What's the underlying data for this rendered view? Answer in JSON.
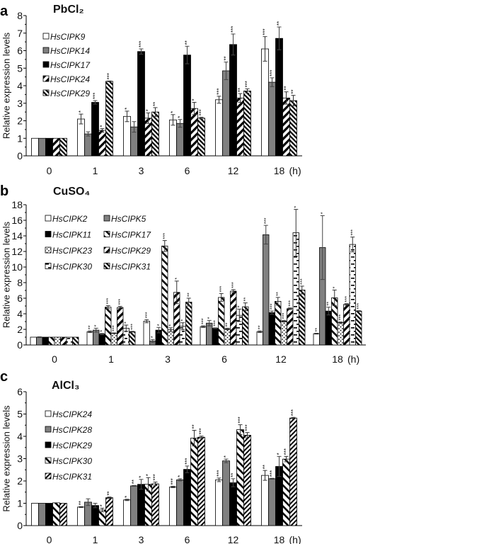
{
  "chart_data": [
    {
      "type": "bar",
      "panel_label": "a",
      "title": "PbCl₂",
      "ylabel": "Relative expression levels",
      "ylim": [
        0,
        8
      ],
      "yticks": [
        "0",
        "1",
        "2",
        "3",
        "4",
        "5",
        "6",
        "7",
        "8"
      ],
      "categories": [
        "0",
        "1",
        "3",
        "6",
        "12",
        "18"
      ],
      "x_unit": "(h)",
      "grid": false,
      "legend_placement": "top-left",
      "series": [
        {
          "name": "HsCIPK9",
          "fill": "white",
          "values": [
            1,
            2.1,
            2.25,
            2.05,
            3.2,
            6.1
          ],
          "errors": [
            0,
            0.28,
            0.3,
            0.3,
            0.2,
            0.7
          ],
          "significance": [
            "",
            "*",
            "*",
            "*",
            "***",
            "***"
          ]
        },
        {
          "name": "HsCIPK14",
          "fill": "gray",
          "values": [
            1,
            1.25,
            1.65,
            1.85,
            4.85,
            4.2
          ],
          "errors": [
            0,
            0.12,
            0.3,
            0.22,
            0.5,
            0.25
          ],
          "significance": [
            "",
            "",
            "",
            "*",
            "**",
            "***"
          ]
        },
        {
          "name": "HsCIPK17",
          "fill": "black",
          "values": [
            1,
            3.05,
            5.95,
            5.75,
            6.35,
            6.7
          ],
          "errors": [
            0,
            0.1,
            0.15,
            0.5,
            0.6,
            0.65
          ],
          "significance": [
            "",
            "***",
            "***",
            "**",
            "***",
            "**"
          ]
        },
        {
          "name": "HsCIPK24",
          "fill": "fwd-wide",
          "values": [
            1,
            1.45,
            2.15,
            2.7,
            3.3,
            3.3
          ],
          "errors": [
            0,
            0.1,
            0.3,
            0.35,
            0.25,
            0.35
          ],
          "significance": [
            "",
            "*",
            "*",
            "*",
            "**",
            "**"
          ]
        },
        {
          "name": "HsCIPK29",
          "fill": "back-dense",
          "values": [
            1,
            4.25,
            2.5,
            2.15,
            3.7,
            3.15
          ],
          "errors": [
            0,
            0.02,
            0.25,
            0.05,
            0.12,
            0.3
          ],
          "significance": [
            "",
            "***",
            "**",
            "***",
            "***",
            "**"
          ]
        }
      ]
    },
    {
      "type": "bar",
      "panel_label": "b",
      "title": "CuSO₄",
      "ylabel": "Relative expression levels",
      "ylim": [
        0,
        18
      ],
      "yticks": [
        "0",
        "2",
        "4",
        "6",
        "8",
        "10",
        "12",
        "14",
        "16",
        "18"
      ],
      "categories": [
        "0",
        "1",
        "3",
        "6",
        "12",
        "18"
      ],
      "x_unit": "(h)",
      "grid": false,
      "legend_placement": "top-left",
      "series": [
        {
          "name": "HsCIPK2",
          "fill": "white",
          "values": [
            1,
            1.7,
            3.05,
            2.35,
            1.7,
            1.45
          ],
          "errors": [
            0,
            0.1,
            0.2,
            0.1,
            0.1,
            0.05
          ],
          "significance": [
            "",
            "**",
            "***",
            "***",
            "**",
            "**"
          ]
        },
        {
          "name": "HsCIPK5",
          "fill": "gray",
          "values": [
            1,
            1.9,
            0.5,
            2.8,
            14.15,
            12.5
          ],
          "errors": [
            0.05,
            0.25,
            0.2,
            0.35,
            1.2,
            4.1
          ],
          "significance": [
            "",
            "*",
            "*",
            "*",
            "***",
            "*"
          ]
        },
        {
          "name": "HsCIPK11",
          "fill": "black",
          "values": [
            1,
            1.4,
            1.9,
            2.15,
            4.15,
            4.35
          ],
          "errors": [
            0,
            0.08,
            0.35,
            0.05,
            0.2,
            0.5
          ],
          "significance": [
            "",
            "*",
            "*",
            "***",
            "***",
            "**"
          ]
        },
        {
          "name": "HsCIPK17",
          "fill": "back-wide",
          "values": [
            1,
            4.85,
            12.7,
            6.1,
            5.6,
            6.05
          ],
          "errors": [
            0,
            0.2,
            0.7,
            0.5,
            0.5,
            1.0
          ],
          "significance": [
            "",
            "***",
            "***",
            "***",
            "**",
            "*"
          ]
        },
        {
          "name": "HsCIPK23",
          "fill": "dots",
          "values": [
            1,
            1.5,
            1.95,
            2.05,
            3.05,
            2.85
          ],
          "errors": [
            0,
            0.05,
            0.25,
            0.1,
            0.1,
            0.1
          ],
          "significance": [
            "",
            "***",
            "*",
            "**",
            "***",
            "***"
          ]
        },
        {
          "name": "HsCIPK29",
          "fill": "fwd-wide",
          "values": [
            1,
            4.8,
            6.75,
            6.9,
            4.65,
            5.2
          ],
          "errors": [
            0,
            0.15,
            1.45,
            0.2,
            0.1,
            0.1
          ],
          "significance": [
            "",
            "***",
            "*",
            "***",
            "***",
            "***"
          ]
        },
        {
          "name": "HsCIPK30",
          "fill": "hdash",
          "values": [
            1,
            2.15,
            2.4,
            3.8,
            14.4,
            12.9
          ],
          "errors": [
            0,
            0.4,
            0.45,
            0.8,
            3.0,
            0.95
          ],
          "significance": [
            "",
            "*",
            "*",
            "*",
            "*",
            "***"
          ]
        },
        {
          "name": "HsCIPK31",
          "fill": "back-dense",
          "values": [
            1,
            1.7,
            5.5,
            4.9,
            7.05,
            4.35
          ],
          "errors": [
            0,
            0.05,
            0.5,
            0.5,
            0.5,
            0.05
          ],
          "significance": [
            "",
            "***",
            "**",
            "**",
            "***",
            "***"
          ]
        }
      ]
    },
    {
      "type": "bar",
      "panel_label": "c",
      "title": "AlCl₃",
      "ylabel": "Relative expression levels",
      "ylim": [
        0,
        6
      ],
      "yticks": [
        "0",
        "1",
        "2",
        "3",
        "4",
        "5",
        "6"
      ],
      "categories": [
        "0",
        "1",
        "3",
        "6",
        "12",
        "18"
      ],
      "x_unit": "(h)",
      "grid": false,
      "legend_placement": "top-left",
      "series": [
        {
          "name": "HsCIPK24",
          "fill": "white",
          "values": [
            1,
            0.83,
            1.15,
            1.73,
            2.05,
            2.25
          ],
          "errors": [
            0,
            0.02,
            0.03,
            0.03,
            0.08,
            0.22
          ],
          "significance": [
            "",
            "**",
            "*",
            "***",
            "***",
            "**"
          ]
        },
        {
          "name": "HsCIPK28",
          "fill": "gray",
          "values": [
            1,
            1.05,
            1.78,
            2.05,
            2.9,
            2.1
          ],
          "errors": [
            0,
            0.15,
            0.02,
            0.05,
            0.08,
            0.02
          ],
          "significance": [
            "",
            "",
            "**",
            "*",
            "*",
            "***"
          ]
        },
        {
          "name": "HsCIPK29",
          "fill": "black",
          "values": [
            1,
            0.9,
            1.85,
            2.52,
            1.92,
            2.65
          ],
          "errors": [
            0,
            0.1,
            0.22,
            0.15,
            0.18,
            0.45
          ],
          "significance": [
            "",
            "",
            "*",
            "***",
            "**",
            "*"
          ]
        },
        {
          "name": "HsCIPK30",
          "fill": "back-wide",
          "values": [
            1.02,
            0.7,
            1.85,
            3.92,
            4.3,
            2.98
          ],
          "errors": [
            0,
            0.08,
            0.3,
            0.35,
            0.22,
            0.12
          ],
          "significance": [
            "",
            "*",
            "*",
            "**",
            "***",
            "***"
          ]
        },
        {
          "name": "HsCIPK31",
          "fill": "fwd-dense",
          "values": [
            1,
            1.25,
            1.87,
            3.96,
            4.05,
            4.82
          ],
          "errors": [
            0,
            0.03,
            0.08,
            0.05,
            0.12,
            0.03
          ],
          "significance": [
            "",
            "**",
            "***",
            "***",
            "***",
            "***"
          ]
        }
      ]
    }
  ]
}
